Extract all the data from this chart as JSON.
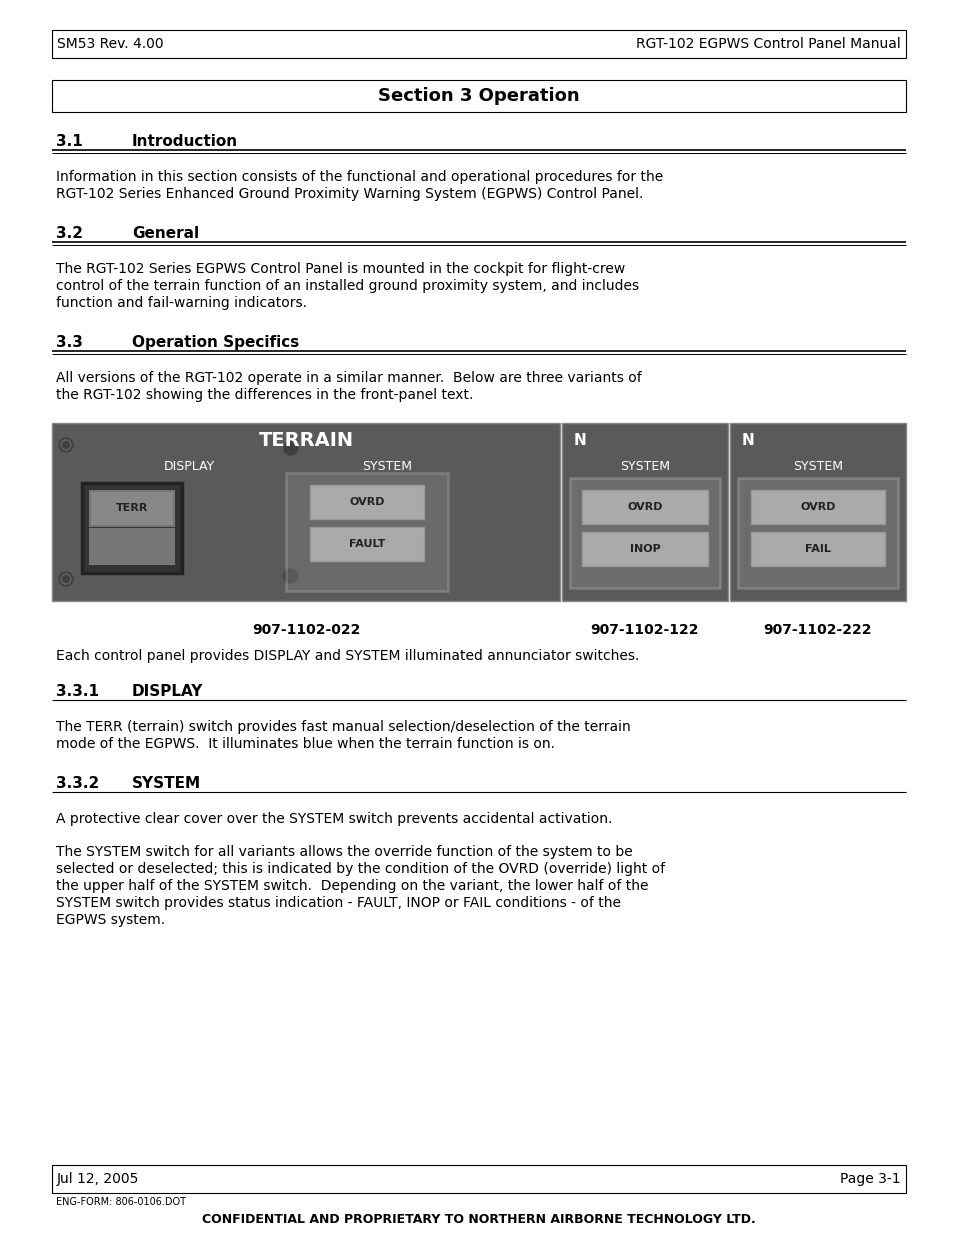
{
  "header_left": "SM53 Rev. 4.00",
  "header_right": "RGT-102 EGPWS Control Panel Manual",
  "section_title": "Section 3 Operation",
  "section_31_num": "3.1",
  "section_31_title": "Introduction",
  "section_31_body": "Information in this section consists of the functional and operational procedures for the RGT-102 Series Enhanced Ground Proximity Warning System (EGPWS) Control Panel.",
  "section_32_num": "3.2",
  "section_32_title": "General",
  "section_32_body": "The RGT-102 Series EGPWS Control Panel is mounted in the cockpit for flight-crew control of the terrain function of an installed ground proximity system, and includes function and fail-warning indicators.",
  "section_33_num": "3.3",
  "section_33_title": "Operation Specifics",
  "section_33_body": "All versions of the RGT-102 operate in a similar manner.  Below are three variants of the RGT-102 showing the differences in the front-panel text.",
  "image_caption_1": "907-1102-022",
  "image_caption_2": "907-1102-122",
  "image_caption_3": "907-1102-222",
  "panel_text": "Each control panel provides DISPLAY and SYSTEM illuminated annunciator switches.",
  "section_331_num": "3.3.1",
  "section_331_title": "DISPLAY",
  "section_331_body": "The TERR (terrain) switch provides fast manual selection/deselection of the terrain mode of the EGPWS.  It illuminates blue when the terrain function is on.",
  "section_332_num": "3.3.2",
  "section_332_title": "SYSTEM",
  "section_332_text1": "A protective clear cover over the SYSTEM switch prevents accidental activation.",
  "section_332_text2": "The SYSTEM switch for all variants allows the override function of the system to be selected or deselected; this is indicated by the condition of the OVRD (override) light of the upper half of the SYSTEM switch.  Depending on the variant, the lower half of the SYSTEM switch provides status indication - FAULT, INOP or FAIL conditions - of the EGPWS system.",
  "footer_left": "Jul 12, 2005",
  "footer_right": "Page 3-1",
  "footer_form": "ENG-FORM: 806-0106.DOT",
  "footer_confidential": "CONFIDENTIAL AND PROPRIETARY TO NORTHERN AIRBORNE TECHNOLOGY LTD.",
  "bg_color": "#ffffff"
}
